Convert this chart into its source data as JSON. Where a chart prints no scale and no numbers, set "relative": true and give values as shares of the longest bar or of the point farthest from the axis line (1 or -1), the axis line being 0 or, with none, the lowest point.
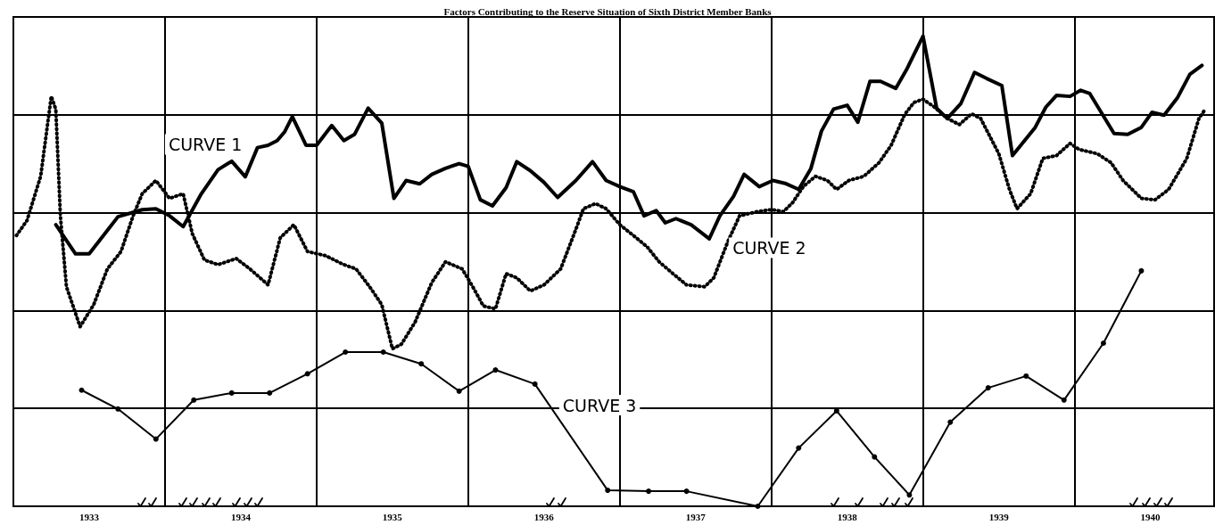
{
  "chart_data": {
    "type": "line",
    "title": "Factors Contributing to the Reserve Situation of Sixth District Member Banks",
    "relative": true,
    "grid": true,
    "legend": false,
    "xlim": [
      1933,
      1940.92
    ],
    "xticks": [
      {
        "value": 1933.5,
        "label": "1933"
      },
      {
        "value": 1934,
        "label": null
      },
      {
        "value": 1934.5,
        "label": "1934"
      },
      {
        "value": 1935,
        "label": null
      },
      {
        "value": 1935.5,
        "label": "1935"
      },
      {
        "value": 1936,
        "label": null
      },
      {
        "value": 1936.5,
        "label": "1936"
      },
      {
        "value": 1937,
        "label": null
      },
      {
        "value": 1937.5,
        "label": "1937"
      },
      {
        "value": 1938,
        "label": null
      },
      {
        "value": 1938.5,
        "label": "1938"
      },
      {
        "value": 1939,
        "label": null
      },
      {
        "value": 1939.5,
        "label": "1939"
      },
      {
        "value": 1940,
        "label": null
      },
      {
        "value": 1940.5,
        "label": "1940"
      }
    ],
    "series": [
      {
        "name": "CURVE 1",
        "color": "#000000",
        "line_style": "solid",
        "marker": "none",
        "x": [
          1933.28,
          1933.41,
          1933.5,
          1933.69,
          1933.85,
          1933.94,
          1934.03,
          1934.12,
          1934.24,
          1934.35,
          1934.44,
          1934.53,
          1934.61,
          1934.68,
          1934.74,
          1934.79,
          1934.84,
          1934.93,
          1935.0,
          1935.1,
          1935.18,
          1935.25,
          1935.34,
          1935.43,
          1935.51,
          1935.59,
          1935.68,
          1935.76,
          1935.85,
          1935.94,
          1936.0,
          1936.08,
          1936.16,
          1936.25,
          1936.32,
          1936.41,
          1936.5,
          1936.59,
          1936.71,
          1936.82,
          1936.91,
          1937.0,
          1937.09,
          1937.16,
          1937.24,
          1937.3,
          1937.37,
          1937.47,
          1937.59,
          1937.66,
          1937.75,
          1937.82,
          1937.92,
          1938.01,
          1938.09,
          1938.18,
          1938.26,
          1938.33,
          1938.41,
          1938.5,
          1938.57,
          1938.65,
          1938.72,
          1938.82,
          1938.89,
          1939.0,
          1939.09,
          1939.16,
          1939.25,
          1939.34,
          1939.42,
          1939.52,
          1939.59,
          1939.74,
          1939.81,
          1939.88,
          1939.97,
          1940.04,
          1940.1,
          1940.26,
          1940.35,
          1940.44,
          1940.51,
          1940.59,
          1940.68,
          1940.76,
          1940.84
        ],
        "values": [
          0.599,
          0.537,
          0.537,
          0.616,
          0.631,
          0.633,
          0.618,
          0.595,
          0.665,
          0.716,
          0.734,
          0.701,
          0.763,
          0.768,
          0.778,
          0.797,
          0.829,
          0.768,
          0.768,
          0.81,
          0.778,
          0.791,
          0.847,
          0.815,
          0.655,
          0.693,
          0.686,
          0.706,
          0.719,
          0.729,
          0.723,
          0.652,
          0.639,
          0.678,
          0.733,
          0.714,
          0.689,
          0.657,
          0.693,
          0.733,
          0.693,
          0.68,
          0.669,
          0.618,
          0.629,
          0.603,
          0.612,
          0.599,
          0.569,
          0.618,
          0.659,
          0.706,
          0.68,
          0.693,
          0.687,
          0.674,
          0.718,
          0.798,
          0.845,
          0.853,
          0.817,
          0.904,
          0.904,
          0.889,
          0.928,
          1,
          0.847,
          0.825,
          0.857,
          0.923,
          0.91,
          0.895,
          0.746,
          0.806,
          0.849,
          0.874,
          0.872,
          0.885,
          0.878,
          0.793,
          0.791,
          0.806,
          0.838,
          0.832,
          0.87,
          0.919,
          0.938
        ]
      },
      {
        "name": "CURVE 2",
        "color": "#000000",
        "line_style": "dotted",
        "marker": "none",
        "x": [
          1933.02,
          1933.09,
          1933.18,
          1933.25,
          1933.28,
          1933.31,
          1933.35,
          1933.44,
          1933.53,
          1933.62,
          1933.71,
          1933.79,
          1933.85,
          1933.94,
          1934.03,
          1934.12,
          1934.18,
          1934.26,
          1934.35,
          1934.47,
          1934.56,
          1934.68,
          1934.76,
          1934.85,
          1934.94,
          1935.06,
          1935.18,
          1935.26,
          1935.35,
          1935.43,
          1935.5,
          1935.56,
          1935.65,
          1935.76,
          1935.85,
          1935.96,
          1936.03,
          1936.1,
          1936.18,
          1936.25,
          1936.32,
          1936.41,
          1936.5,
          1936.61,
          1936.71,
          1936.76,
          1936.84,
          1936.91,
          1937.0,
          1937.09,
          1937.18,
          1937.26,
          1937.35,
          1937.44,
          1937.56,
          1937.62,
          1937.71,
          1937.79,
          1937.91,
          1938.0,
          1938.08,
          1938.14,
          1938.21,
          1938.29,
          1938.37,
          1938.43,
          1938.51,
          1938.61,
          1938.71,
          1938.79,
          1938.88,
          1938.94,
          1939.0,
          1939.08,
          1939.16,
          1939.24,
          1939.32,
          1939.38,
          1939.5,
          1939.57,
          1939.62,
          1939.71,
          1939.79,
          1939.88,
          1939.97,
          1940.03,
          1940.15,
          1940.24,
          1940.32,
          1940.44,
          1940.53,
          1940.62,
          1940.74,
          1940.82,
          1940.86
        ],
        "values": [
          0.576,
          0.608,
          0.702,
          0.872,
          0.844,
          0.618,
          0.467,
          0.382,
          0.429,
          0.505,
          0.542,
          0.618,
          0.665,
          0.693,
          0.655,
          0.665,
          0.58,
          0.524,
          0.514,
          0.527,
          0.505,
          0.471,
          0.571,
          0.599,
          0.542,
          0.533,
          0.514,
          0.505,
          0.467,
          0.429,
          0.335,
          0.345,
          0.392,
          0.476,
          0.52,
          0.505,
          0.467,
          0.426,
          0.42,
          0.495,
          0.486,
          0.458,
          0.471,
          0.505,
          0.589,
          0.633,
          0.644,
          0.633,
          0.599,
          0.576,
          0.552,
          0.52,
          0.495,
          0.471,
          0.467,
          0.486,
          0.561,
          0.618,
          0.627,
          0.631,
          0.627,
          0.646,
          0.68,
          0.702,
          0.693,
          0.674,
          0.693,
          0.702,
          0.731,
          0.768,
          0.834,
          0.859,
          0.866,
          0.848,
          0.825,
          0.812,
          0.835,
          0.825,
          0.75,
          0.674,
          0.633,
          0.665,
          0.74,
          0.746,
          0.772,
          0.759,
          0.75,
          0.731,
          0.693,
          0.655,
          0.652,
          0.674,
          0.74,
          0.825,
          0.844
        ]
      },
      {
        "name": "CURVE 3",
        "color": "#000000",
        "line_style": "solid",
        "marker": "circle",
        "x": [
          1933.45,
          1933.69,
          1933.94,
          1934.19,
          1934.44,
          1934.69,
          1934.94,
          1935.19,
          1935.44,
          1935.69,
          1935.94,
          1936.18,
          1936.44,
          1936.92,
          1937.19,
          1937.44,
          1937.91,
          1938.18,
          1938.43,
          1938.68,
          1938.91,
          1939.18,
          1939.43,
          1939.68,
          1939.93,
          1940.19,
          1940.44
        ],
        "values": [
          0.247,
          0.207,
          0.143,
          0.226,
          0.241,
          0.241,
          0.282,
          0.328,
          0.328,
          0.303,
          0.245,
          0.29,
          0.26,
          0.034,
          0.032,
          0.032,
          0,
          0.124,
          0.203,
          0.105,
          0.024,
          0.179,
          0.252,
          0.277,
          0.226,
          0.347,
          0.501
        ]
      }
    ]
  }
}
